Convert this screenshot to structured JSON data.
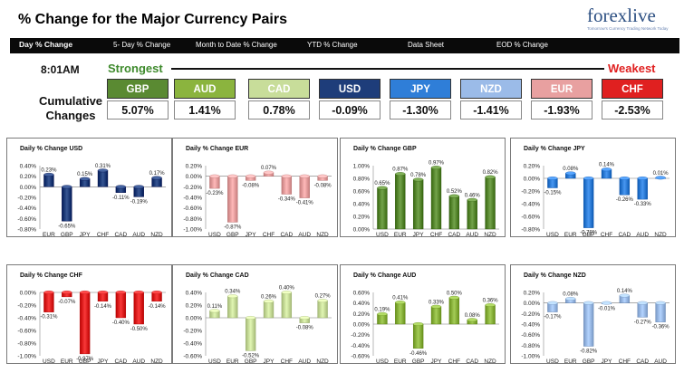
{
  "header": {
    "title": "% Change for the Major Currency Pairs",
    "logo_text": "forexlive",
    "logo_tagline": "Tomorrow's Currency Trading Network Today"
  },
  "nav": {
    "tabs": [
      "Day % Change",
      "5- Day % Change",
      "Month to Date % Change",
      "YTD % Change",
      "Data Sheet",
      "EOD % Change"
    ]
  },
  "summary": {
    "time": "8:01AM",
    "strongest_label": "Strongest",
    "weakest_label": "Weakest",
    "cumulative_label": "Cumulative Changes",
    "currencies": [
      {
        "code": "GBP",
        "value": "5.07%",
        "color": "#5a8a32"
      },
      {
        "code": "AUD",
        "value": "1.41%",
        "color": "#8bb43e"
      },
      {
        "code": "CAD",
        "value": "0.78%",
        "color": "#c8dd9a"
      },
      {
        "code": "USD",
        "value": "-0.09%",
        "color": "#1e3d7a"
      },
      {
        "code": "JPY",
        "value": "-1.30%",
        "color": "#2f7ed8"
      },
      {
        "code": "NZD",
        "value": "-1.41%",
        "color": "#9bbbe8"
      },
      {
        "code": "EUR",
        "value": "-1.93%",
        "color": "#e8a0a0"
      },
      {
        "code": "CHF",
        "value": "-2.53%",
        "color": "#e02020"
      }
    ]
  },
  "chart_data": [
    {
      "type": "bar",
      "title": "Daily % Change USD",
      "categories": [
        "EUR",
        "GBP",
        "JPY",
        "CHF",
        "CAD",
        "AUD",
        "NZD"
      ],
      "values": [
        0.23,
        -0.65,
        0.15,
        0.31,
        -0.11,
        -0.19,
        0.17
      ],
      "value_labels": [
        "0.23%",
        "-0.65%",
        "0.15%",
        "0.31%",
        "-0.11%",
        "-0.19%",
        "0.17%"
      ],
      "yticks": [
        "0.40%",
        "0.20%",
        "0.00%",
        "-0.20%",
        "-0.40%",
        "-0.60%",
        "-0.80%"
      ],
      "ylim": [
        -0.8,
        0.4
      ],
      "color": "#1e3d7a"
    },
    {
      "type": "bar",
      "title": "Daily % Change EUR",
      "categories": [
        "USD",
        "GBP",
        "JPY",
        "CHF",
        "CAD",
        "AUD",
        "NZD"
      ],
      "values": [
        -0.23,
        -0.87,
        -0.08,
        0.07,
        -0.34,
        -0.41,
        -0.08
      ],
      "value_labels": [
        "-0.23%",
        "-0.87%",
        "-0.08%",
        "0.07%",
        "-0.34%",
        "-0.41%",
        "-0.08%"
      ],
      "yticks": [
        "0.20%",
        "0.00%",
        "-0.20%",
        "-0.40%",
        "-0.60%",
        "-0.80%",
        "-1.00%"
      ],
      "ylim": [
        -1.0,
        0.2
      ],
      "color": "#e8a0a0"
    },
    {
      "type": "bar",
      "title": "Daily % Change GBP",
      "categories": [
        "USD",
        "EUR",
        "JPY",
        "CHF",
        "CAD",
        "AUD",
        "NZD"
      ],
      "values": [
        0.65,
        0.87,
        0.78,
        0.97,
        0.52,
        0.46,
        0.82
      ],
      "value_labels": [
        "0.65%",
        "0.87%",
        "0.78%",
        "0.97%",
        "0.52%",
        "0.46%",
        "0.82%"
      ],
      "yticks": [
        "1.00%",
        "0.80%",
        "0.60%",
        "0.40%",
        "0.20%",
        "0.00%"
      ],
      "ylim": [
        0,
        1.0
      ],
      "color": "#5a8a32"
    },
    {
      "type": "bar",
      "title": "Daily % Change JPY",
      "categories": [
        "USD",
        "EUR",
        "GBP",
        "CHF",
        "CAD",
        "AUD",
        "NZD"
      ],
      "values": [
        -0.15,
        0.08,
        -0.78,
        0.14,
        -0.26,
        -0.33,
        0.01
      ],
      "value_labels": [
        "-0.15%",
        "0.08%",
        "-0.78%",
        "0.14%",
        "-0.26%",
        "-0.33%",
        "0.01%"
      ],
      "yticks": [
        "0.20%",
        "0.00%",
        "-0.20%",
        "-0.40%",
        "-0.60%",
        "-0.80%"
      ],
      "ylim": [
        -0.8,
        0.2
      ],
      "color": "#2f7ed8"
    },
    {
      "type": "bar",
      "title": "Daily % Change CHF",
      "categories": [
        "USD",
        "EUR",
        "GBP",
        "JPY",
        "CAD",
        "AUD",
        "NZD"
      ],
      "values": [
        -0.31,
        -0.07,
        -0.97,
        -0.14,
        -0.4,
        -0.5,
        -0.14
      ],
      "value_labels": [
        "-0.31%",
        "-0.07%",
        "-0.97%",
        "-0.14%",
        "-0.40%",
        "-0.50%",
        "-0.14%"
      ],
      "yticks": [
        "0.00%",
        "-0.20%",
        "-0.40%",
        "-0.60%",
        "-0.80%",
        "-1.00%"
      ],
      "ylim": [
        -1.0,
        0
      ],
      "color": "#e02020"
    },
    {
      "type": "bar",
      "title": "Daily % Change CAD",
      "categories": [
        "USD",
        "EUR",
        "GBP",
        "JPY",
        "CHF",
        "AUD",
        "NZD"
      ],
      "values": [
        0.11,
        0.34,
        -0.52,
        0.26,
        0.4,
        -0.08,
        0.27
      ],
      "value_labels": [
        "0.11%",
        "0.34%",
        "-0.52%",
        "0.26%",
        "0.40%",
        "-0.08%",
        "0.27%"
      ],
      "yticks": [
        "0.40%",
        "0.20%",
        "0.00%",
        "-0.20%",
        "-0.40%",
        "-0.60%"
      ],
      "ylim": [
        -0.6,
        0.4
      ],
      "color": "#c8dd9a"
    },
    {
      "type": "bar",
      "title": "Daily % Change AUD",
      "categories": [
        "USD",
        "EUR",
        "GBP",
        "JPY",
        "CHF",
        "CAD",
        "NZD"
      ],
      "values": [
        0.19,
        0.41,
        -0.46,
        0.33,
        0.5,
        0.08,
        0.36
      ],
      "value_labels": [
        "0.19%",
        "0.41%",
        "-0.46%",
        "0.33%",
        "0.50%",
        "0.08%",
        "0.36%"
      ],
      "yticks": [
        "0.60%",
        "0.40%",
        "0.20%",
        "0.00%",
        "-0.20%",
        "-0.40%",
        "-0.60%"
      ],
      "ylim": [
        -0.6,
        0.6
      ],
      "color": "#8bb43e"
    },
    {
      "type": "bar",
      "title": "Daily % Change NZD",
      "categories": [
        "USD",
        "EUR",
        "GBP",
        "JPY",
        "CHF",
        "CAD",
        "AUD"
      ],
      "values": [
        -0.17,
        0.08,
        -0.82,
        -0.01,
        0.14,
        -0.27,
        -0.36
      ],
      "value_labels": [
        "-0.17%",
        "0.08%",
        "-0.82%",
        "-0.01%",
        "0.14%",
        "-0.27%",
        "-0.36%"
      ],
      "yticks": [
        "0.20%",
        "0.00%",
        "-0.20%",
        "-0.40%",
        "-0.60%",
        "-0.80%",
        "-1.00%"
      ],
      "ylim": [
        -1.0,
        0.2
      ],
      "color": "#9bbbe8"
    }
  ]
}
